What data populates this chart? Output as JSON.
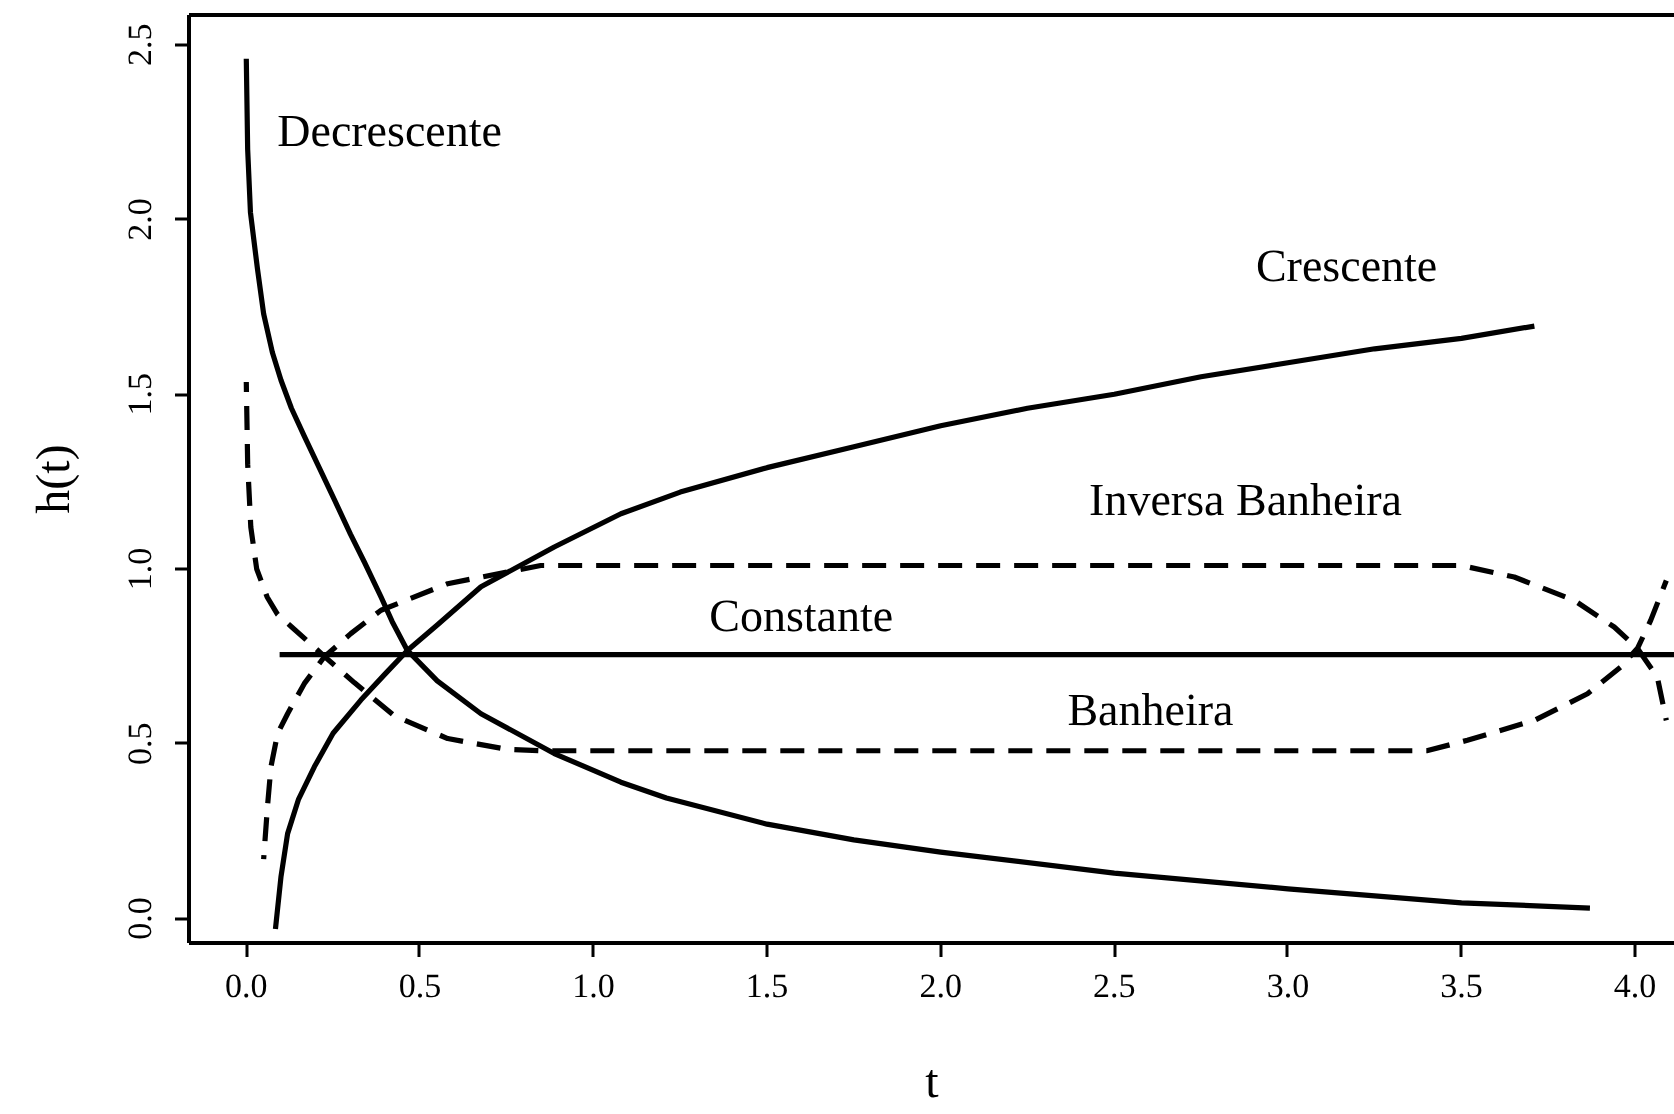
{
  "chart_data": {
    "type": "line",
    "xlabel": "t",
    "ylabel": "h(t)",
    "xlim": [
      -0.165,
      4.115
    ],
    "ylim": [
      -0.07,
      2.585
    ],
    "xticks": [
      {
        "value": 0,
        "label": "0.0"
      },
      0.5,
      {
        "value": 1,
        "label": "1.0"
      },
      1.5,
      {
        "value": 2,
        "label": "2.0"
      },
      2.5,
      {
        "value": 3,
        "label": "3.0"
      },
      3.5,
      {
        "value": 4,
        "label": "4.0"
      }
    ],
    "yticks": [
      {
        "value": 0,
        "label": "0.0"
      },
      0.5,
      {
        "value": 1,
        "label": "1.0"
      },
      1.5,
      {
        "value": 2,
        "label": "2.0"
      },
      2.5
    ],
    "series": [
      {
        "name": "Decrescente",
        "color": "#000000",
        "line_style": "solid",
        "x": [
          0.0,
          0.004,
          0.012,
          0.032,
          0.05,
          0.075,
          0.1,
          0.13,
          0.167,
          0.21,
          0.253,
          0.3,
          0.34,
          0.388,
          0.42,
          0.464,
          0.55,
          0.676,
          0.887,
          1.079,
          1.21,
          1.5,
          1.75,
          2.0,
          2.5,
          3.0,
          3.5,
          3.87
        ],
        "values": [
          2.46,
          2.2,
          2.02,
          1.86,
          1.73,
          1.62,
          1.54,
          1.46,
          1.38,
          1.29,
          1.2,
          1.1,
          1.02,
          0.92,
          0.85,
          0.767,
          0.68,
          0.586,
          0.472,
          0.39,
          0.345,
          0.27,
          0.225,
          0.19,
          0.13,
          0.085,
          0.045,
          0.03
        ]
      },
      {
        "name": "Crescente",
        "color": "#000000",
        "line_style": "solid",
        "x": [
          0.084,
          0.1,
          0.119,
          0.15,
          0.196,
          0.25,
          0.33,
          0.4,
          0.464,
          0.55,
          0.676,
          0.887,
          1.079,
          1.25,
          1.5,
          1.75,
          2.0,
          2.25,
          2.5,
          2.75,
          3.0,
          3.25,
          3.5,
          3.71
        ],
        "values": [
          -0.03,
          0.12,
          0.243,
          0.34,
          0.434,
          0.53,
          0.625,
          0.7,
          0.767,
          0.84,
          0.949,
          1.063,
          1.158,
          1.22,
          1.29,
          1.35,
          1.41,
          1.46,
          1.5,
          1.55,
          1.59,
          1.63,
          1.66,
          1.695
        ]
      },
      {
        "name": "Inversa Banheira",
        "color": "#000000",
        "line_style": "dashed",
        "x": [
          0.05,
          0.061,
          0.071,
          0.09,
          0.119,
          0.167,
          0.225,
          0.301,
          0.388,
          0.58,
          0.848,
          1.5,
          2.0,
          2.5,
          3.0,
          3.5,
          3.652,
          3.825,
          3.94,
          4.007,
          4.064,
          4.09
        ],
        "values": [
          0.17,
          0.32,
          0.434,
          0.529,
          0.586,
          0.672,
          0.749,
          0.815,
          0.882,
          0.958,
          1.01,
          1.01,
          1.01,
          1.01,
          1.01,
          1.01,
          0.977,
          0.91,
          0.834,
          0.773,
          0.691,
          0.567
        ]
      },
      {
        "name": "Constante",
        "color": "#000000",
        "line_style": "solid",
        "x": [
          0.096,
          4.115
        ],
        "values": [
          0.755,
          0.755
        ]
      },
      {
        "name": "Banheira",
        "color": "#000000",
        "line_style": "dashed",
        "x": [
          0.0,
          0.004,
          0.013,
          0.03,
          0.06,
          0.09,
          0.13,
          0.225,
          0.311,
          0.426,
          0.58,
          0.752,
          0.85,
          1.5,
          2.0,
          2.5,
          3.0,
          3.4,
          3.517,
          3.71,
          3.863,
          3.959,
          4.007,
          4.045,
          4.09
        ],
        "values": [
          1.535,
          1.3,
          1.12,
          1.0,
          0.92,
          0.87,
          0.835,
          0.75,
          0.675,
          0.58,
          0.515,
          0.484,
          0.48,
          0.48,
          0.48,
          0.48,
          0.48,
          0.48,
          0.51,
          0.567,
          0.643,
          0.72,
          0.773,
          0.853,
          0.967
        ]
      }
    ]
  }
}
